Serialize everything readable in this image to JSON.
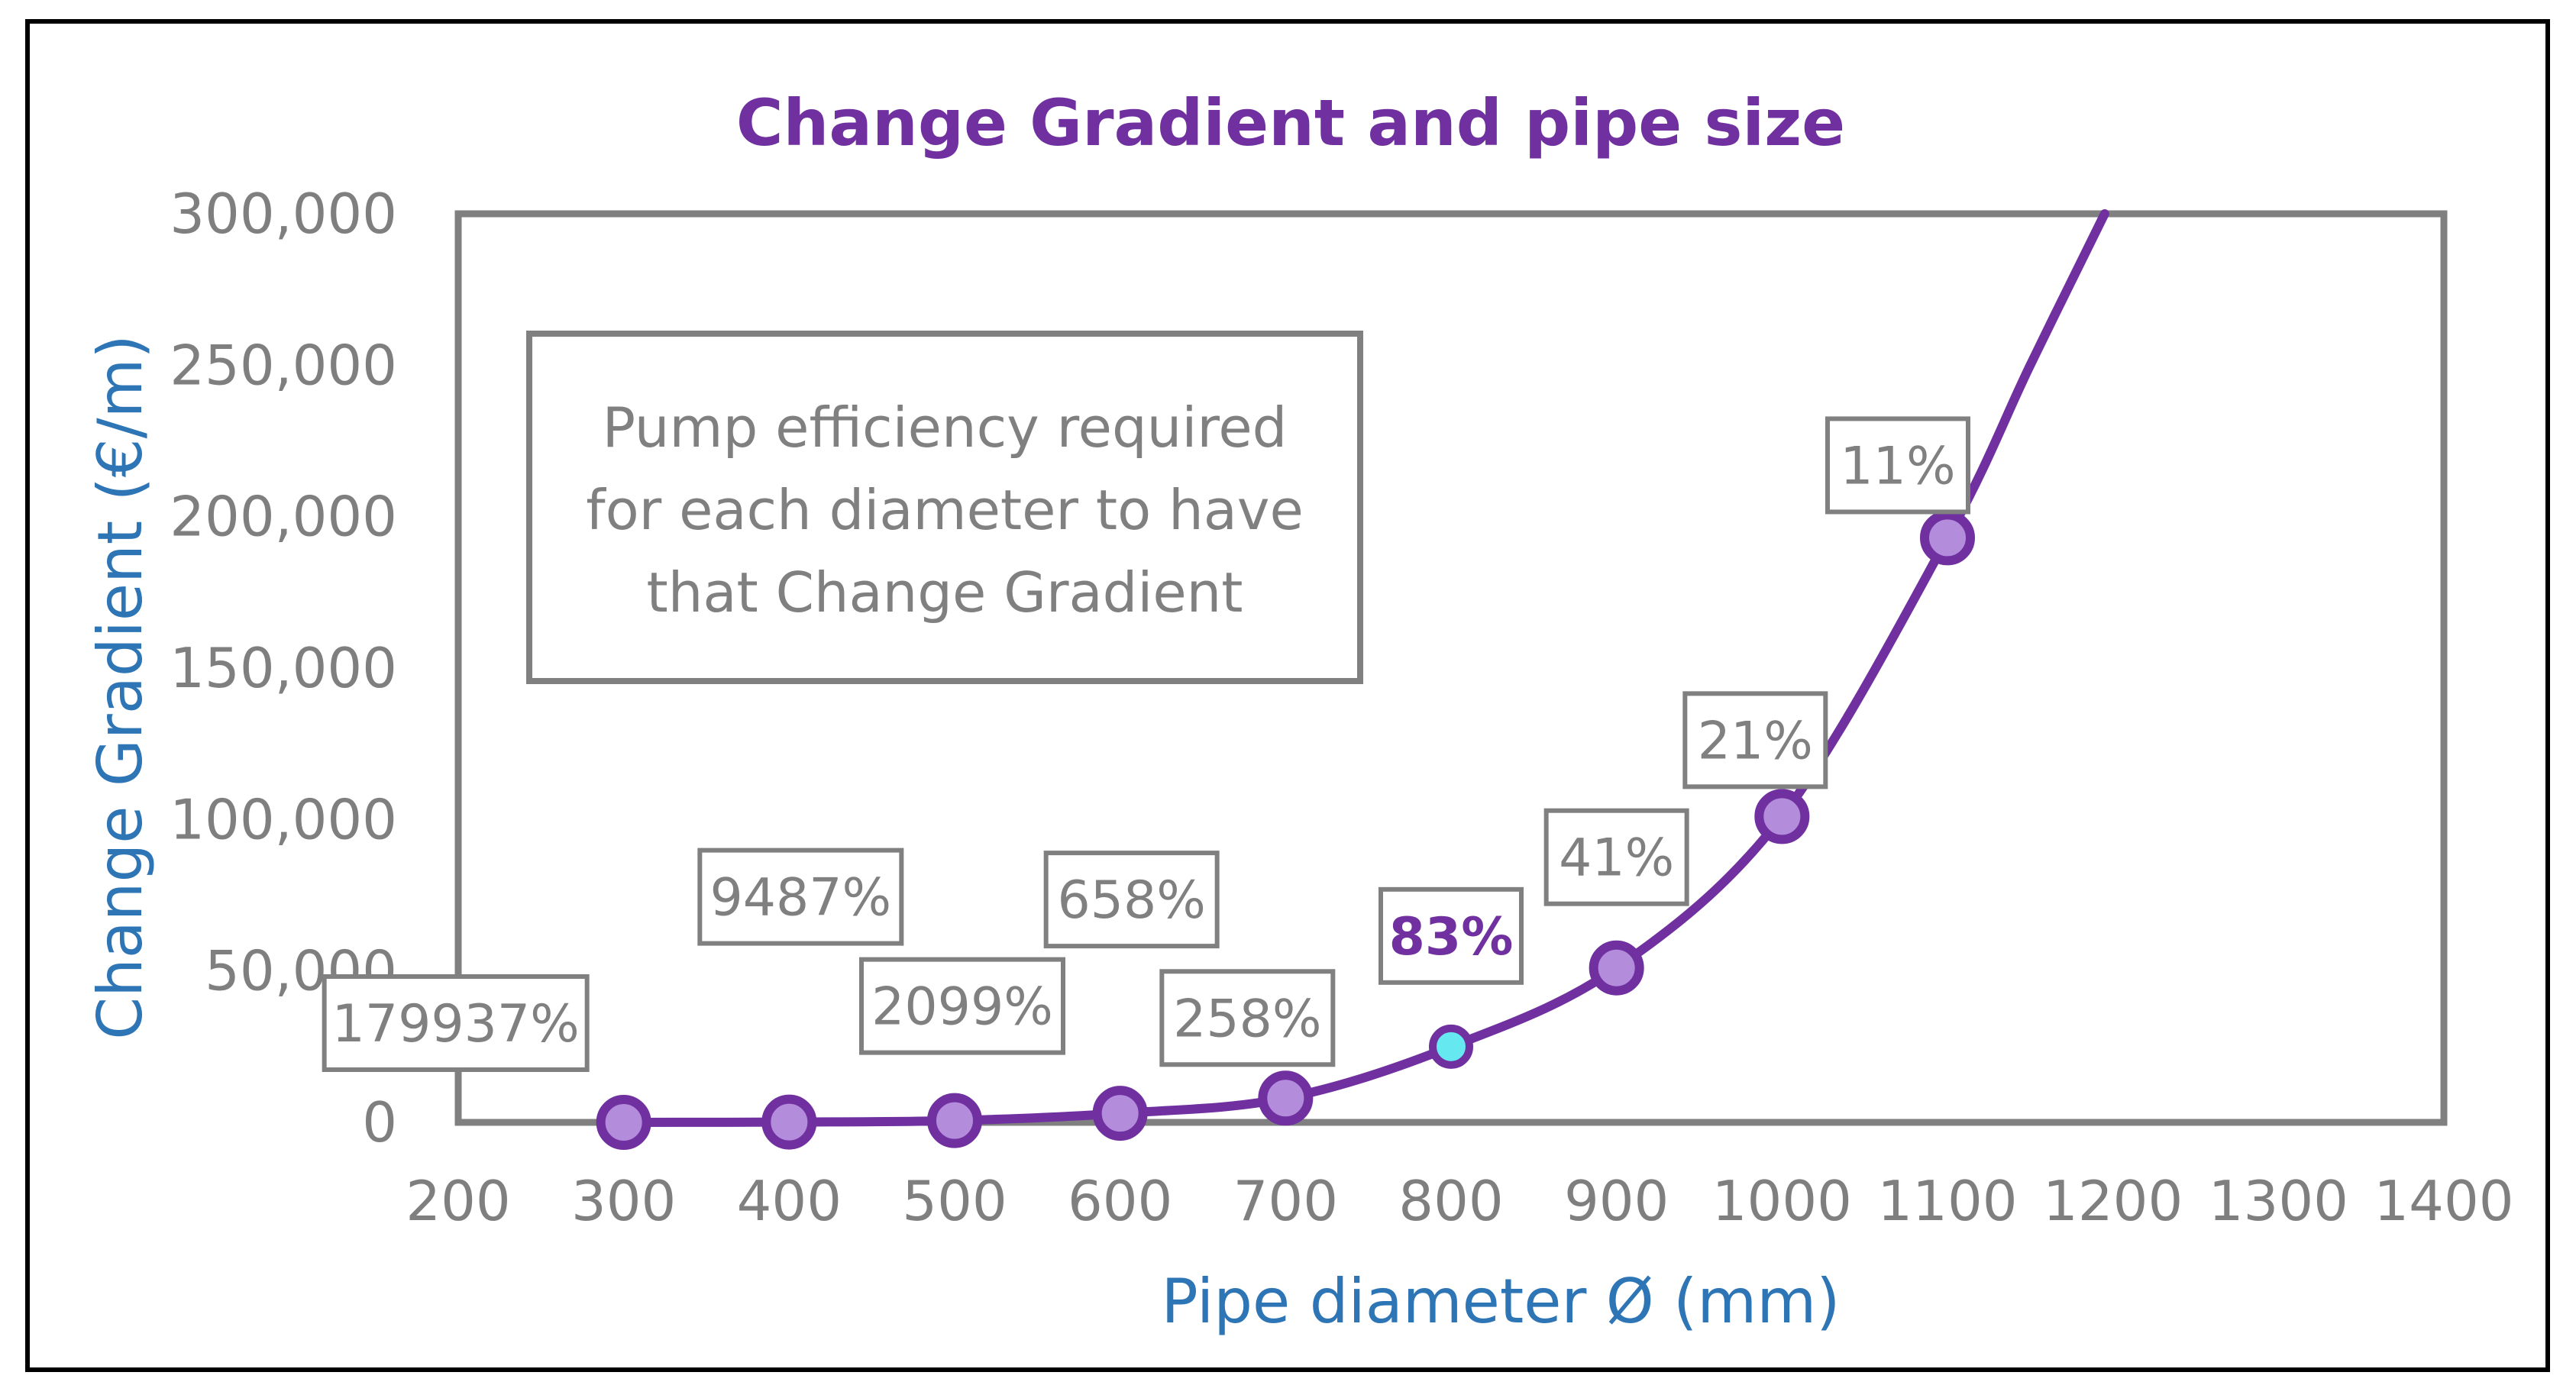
{
  "chart_data": {
    "type": "line",
    "title": "Change Gradient and pipe size",
    "xlabel": "Pipe diameter Ø (mm)",
    "ylabel": "Change Gradient (€/m)",
    "xlim": [
      200,
      1400
    ],
    "ylim": [
      0,
      300000
    ],
    "x_ticks": [
      "200",
      "300",
      "400",
      "500",
      "600",
      "700",
      "800",
      "900",
      "1000",
      "1100",
      "1200",
      "1300",
      "1400"
    ],
    "y_ticks": [
      "0",
      "50,000",
      "100,000",
      "150,000",
      "200,000",
      "250,000",
      "300,000"
    ],
    "series": [
      {
        "name": "Change Gradient",
        "x": [
          300,
          400,
          500,
          600,
          700,
          800,
          900,
          1000,
          1100
        ],
        "y": [
          0,
          100,
          600,
          3000,
          8000,
          25000,
          51000,
          101000,
          193000
        ],
        "labels": [
          "179937%",
          "9487%",
          "2099%",
          "658%",
          "258%",
          "83%",
          "41%",
          "21%",
          "11%"
        ],
        "highlight_index": 5
      }
    ],
    "curve_extension": {
      "x": [
        1150,
        1195
      ],
      "y": [
        250000,
        300000
      ]
    },
    "annotation": "Pump efficiency required for each diameter to have that Change Gradient",
    "colors": {
      "line": "#7030A0",
      "marker_fill": "#B48CDC",
      "highlight_fill": "#66E8F0",
      "title": "#7030A0",
      "axis_title": "#2E75B6",
      "tick_text": "#7F7F7F",
      "label_text": "#808080",
      "plot_border": "#808080"
    }
  }
}
